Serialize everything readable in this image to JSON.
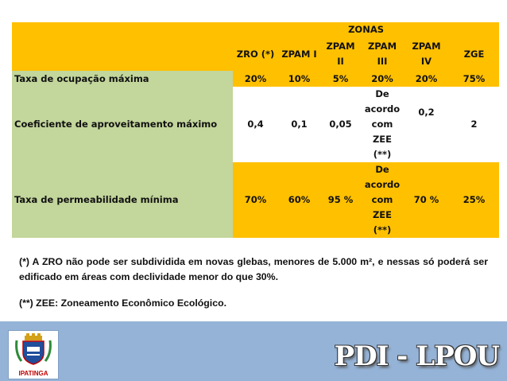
{
  "table": {
    "zonas_header": "ZONAS",
    "columns": [
      "ZRO (*)",
      "ZPAM I",
      "ZPAM II",
      "ZPAM\nIII",
      "ZPAM\nIV",
      "ZGE"
    ],
    "rows": [
      {
        "label": "Taxa de ocupação máxima",
        "values": [
          "20%",
          "10%",
          "5%",
          "20%",
          "20%",
          "75%"
        ]
      },
      {
        "label": "Coeficiente de aproveitamento máximo",
        "values": [
          "0,4",
          "0,1",
          "0,05",
          "De\nacordo\ncom\nZEE\n(**)",
          "0,2",
          "2"
        ]
      },
      {
        "label": "Taxa de permeabilidade mínima",
        "values": [
          "70%",
          "60%",
          "95 %",
          "De\nacordo\ncom\nZEE\n(**)",
          "70 %",
          "25%"
        ]
      }
    ]
  },
  "notes": {
    "note1": "(*) A ZRO não pode ser subdividida em novas glebas, menores de 5.000 m², e nessas só poderá ser edificado em áreas com declividade menor do que 30%.",
    "note2": "(**) ZEE: Zoneamento Econômico Ecológico."
  },
  "footer": {
    "logo_text": "IPATINGA",
    "brand": "PDI - LPOU"
  },
  "colors": {
    "header_yellow": "#ffc000",
    "label_green": "#c3d69b",
    "footer_blue": "#95b3d7"
  }
}
